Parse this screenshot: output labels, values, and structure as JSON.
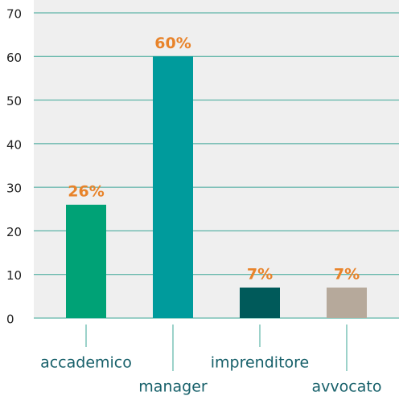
{
  "chart_data": {
    "type": "bar",
    "categories": [
      "accademico",
      "manager",
      "imprenditore",
      "avvocato"
    ],
    "values": [
      26,
      60,
      7,
      7
    ],
    "value_labels": [
      "26%",
      "60%",
      "7%",
      "7%"
    ],
    "colors": [
      "#00a276",
      "#009b9c",
      "#005a5a",
      "#b6a99b"
    ],
    "ylim": [
      0,
      70
    ],
    "yticks": [
      0,
      10,
      20,
      30,
      40,
      50,
      60,
      70
    ],
    "grid": true
  }
}
